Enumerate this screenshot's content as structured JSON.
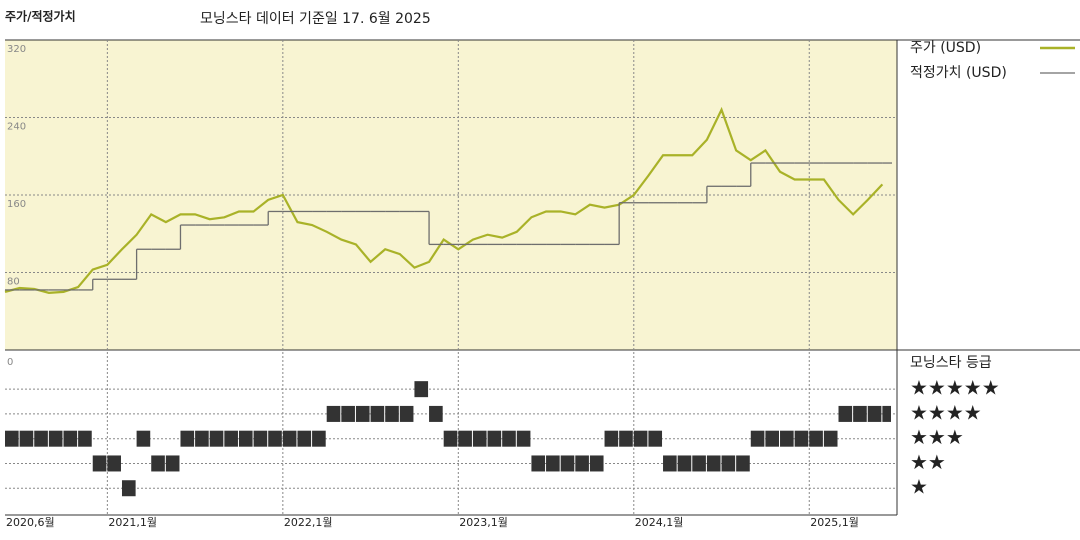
{
  "chart_data": [
    {
      "type": "line",
      "title": "주가/적정가치",
      "subtitle": "모닝스타 데이터 기준일 17. 6월 2025",
      "x": [
        "2020-06",
        "2020-07",
        "2020-08",
        "2020-09",
        "2020-10",
        "2020-11",
        "2020-12",
        "2021-01",
        "2021-02",
        "2021-03",
        "2021-04",
        "2021-05",
        "2021-06",
        "2021-07",
        "2021-08",
        "2021-09",
        "2021-10",
        "2021-11",
        "2021-12",
        "2022-01",
        "2022-02",
        "2022-03",
        "2022-04",
        "2022-05",
        "2022-06",
        "2022-07",
        "2022-08",
        "2022-09",
        "2022-10",
        "2022-11",
        "2022-12",
        "2023-01",
        "2023-02",
        "2023-03",
        "2023-04",
        "2023-05",
        "2023-06",
        "2023-07",
        "2023-08",
        "2023-09",
        "2023-10",
        "2023-11",
        "2023-12",
        "2024-01",
        "2024-02",
        "2024-03",
        "2024-04",
        "2024-05",
        "2024-06",
        "2024-07",
        "2024-08",
        "2024-09",
        "2024-10",
        "2024-11",
        "2024-12",
        "2025-01",
        "2025-02",
        "2025-03",
        "2025-04",
        "2025-05",
        "2025-06"
      ],
      "series": [
        {
          "name": "주가 (USD)",
          "color": "#a9b228",
          "values": [
            60,
            64,
            63,
            59,
            60,
            65,
            83,
            88,
            104,
            119,
            140,
            132,
            140,
            140,
            135,
            137,
            143,
            143,
            155,
            160,
            132,
            129,
            122,
            114,
            109,
            91,
            104,
            99,
            85,
            91,
            114,
            104,
            114,
            119,
            116,
            122,
            137,
            143,
            143,
            140,
            150,
            147,
            150,
            160,
            180,
            201,
            201,
            201,
            217,
            248,
            206,
            196,
            206,
            184,
            176,
            176,
            176,
            155,
            140,
            155,
            171
          ]
        },
        {
          "name": "적정가치 (USD)",
          "color": "#6e6e6e",
          "step": true,
          "values": [
            62,
            62,
            62,
            62,
            62,
            62,
            73,
            73,
            73,
            104,
            104,
            104,
            129,
            129,
            129,
            129,
            129,
            129,
            143,
            143,
            143,
            143,
            143,
            143,
            143,
            143,
            143,
            143,
            143,
            109,
            109,
            109,
            109,
            109,
            109,
            109,
            109,
            109,
            109,
            109,
            109,
            109,
            152,
            152,
            152,
            152,
            152,
            152,
            169,
            169,
            169,
            193,
            193,
            193,
            193,
            193,
            193,
            193,
            193,
            193,
            193
          ]
        }
      ],
      "xlim": [
        "2020-06",
        "2025-07"
      ],
      "xticks": [
        {
          "value": "2020-06",
          "label": "2020,6월"
        },
        {
          "value": "2021-01",
          "label": "2021,1월"
        },
        {
          "value": "2022-01",
          "label": "2022,1월"
        },
        {
          "value": "2023-01",
          "label": "2023,1월"
        },
        {
          "value": "2024-01",
          "label": "2024,1월"
        },
        {
          "value": "2025-01",
          "label": "2025,1월"
        }
      ],
      "ylim": [
        0,
        320
      ],
      "yticks": [
        80,
        160,
        240,
        320
      ],
      "grid": true,
      "background": "#f8f4d2"
    },
    {
      "type": "tick",
      "title": "모닝스타 등급",
      "axis_label": "0",
      "color": "#333333",
      "x": [
        "2020-06",
        "2020-07",
        "2020-08",
        "2020-09",
        "2020-10",
        "2020-11",
        "2020-12",
        "2021-01",
        "2021-02",
        "2021-03",
        "2021-04",
        "2021-05",
        "2021-06",
        "2021-07",
        "2021-08",
        "2021-09",
        "2021-10",
        "2021-11",
        "2021-12",
        "2022-01",
        "2022-02",
        "2022-03",
        "2022-04",
        "2022-05",
        "2022-06",
        "2022-07",
        "2022-08",
        "2022-09",
        "2022-10",
        "2022-11",
        "2022-12",
        "2023-01",
        "2023-02",
        "2023-03",
        "2023-04",
        "2023-05",
        "2023-06",
        "2023-07",
        "2023-08",
        "2023-09",
        "2023-10",
        "2023-11",
        "2023-12",
        "2024-01",
        "2024-02",
        "2024-03",
        "2024-04",
        "2024-05",
        "2024-06",
        "2024-07",
        "2024-08",
        "2024-09",
        "2024-10",
        "2024-11",
        "2024-12",
        "2025-01",
        "2025-02",
        "2025-03",
        "2025-04",
        "2025-05",
        "2025-06"
      ],
      "values": [
        3,
        3,
        3,
        3,
        3,
        3,
        2,
        2,
        1,
        3,
        2,
        2,
        3,
        3,
        3,
        3,
        3,
        3,
        3,
        3,
        3,
        3,
        4,
        4,
        4,
        4,
        4,
        4,
        5,
        4,
        3,
        3,
        3,
        3,
        3,
        3,
        2,
        2,
        2,
        2,
        2,
        3,
        3,
        3,
        3,
        2,
        2,
        2,
        2,
        2,
        2,
        3,
        3,
        3,
        3,
        3,
        3,
        4,
        4,
        4,
        4
      ],
      "ylim": [
        0,
        6.5
      ],
      "yticks": [
        {
          "value": 5,
          "label": "★★★★★"
        },
        {
          "value": 4,
          "label": "★★★★"
        },
        {
          "value": 3,
          "label": "★★★"
        },
        {
          "value": 2,
          "label": "★★"
        },
        {
          "value": 1,
          "label": "★"
        }
      ]
    }
  ]
}
